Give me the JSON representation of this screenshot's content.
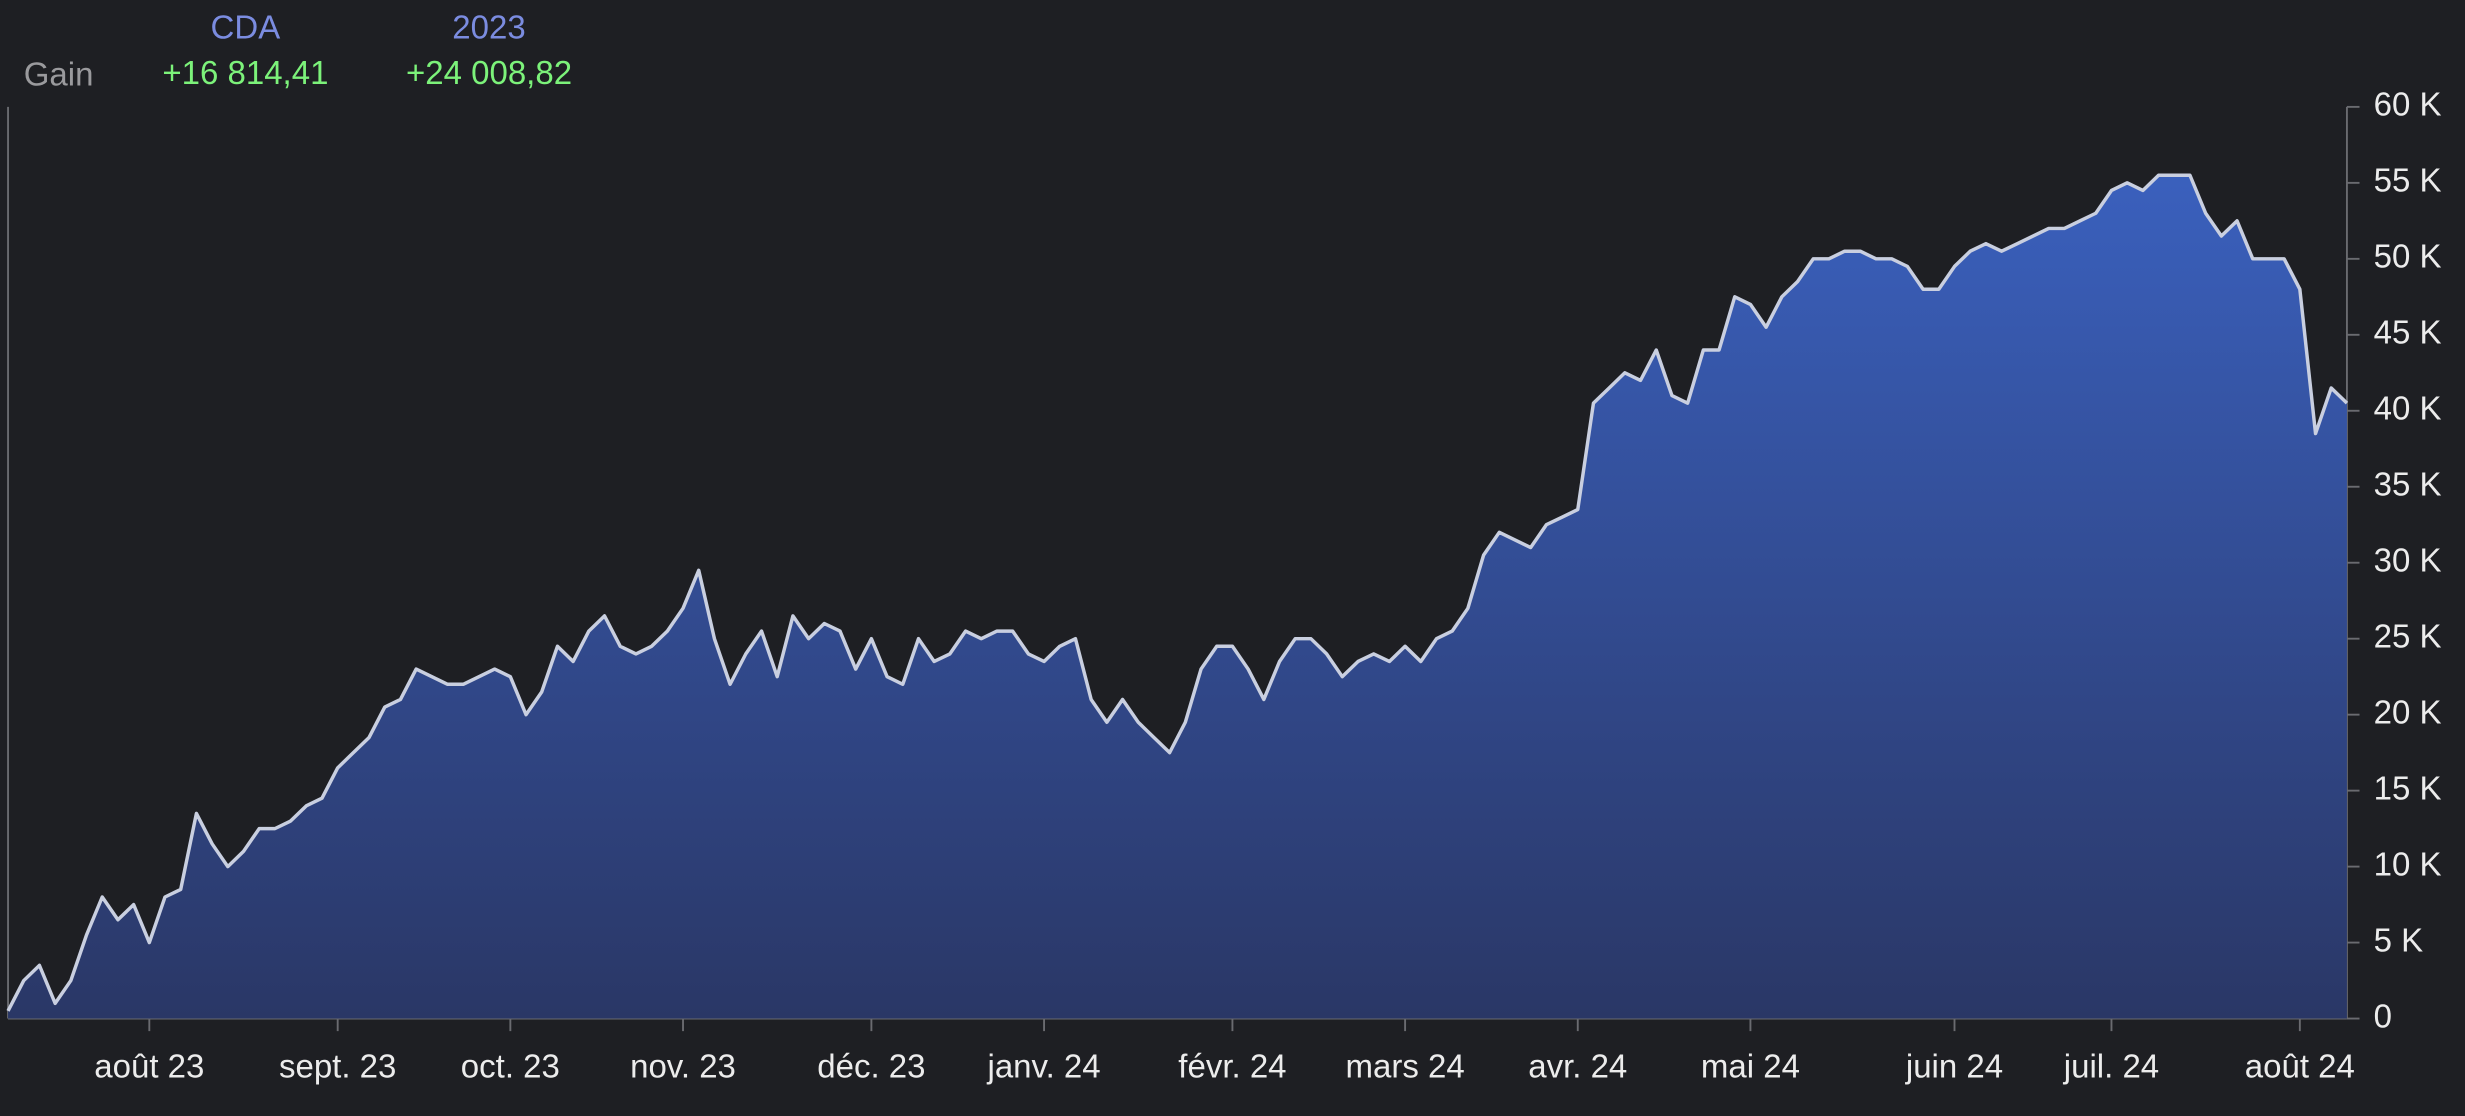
{
  "header": {
    "columns": [
      "CDA",
      "2023"
    ],
    "row_label": "Gain",
    "values": [
      "+16 814,41",
      "+24 008,82"
    ]
  },
  "chart_data": {
    "type": "area",
    "categories": [
      null,
      null,
      null,
      null,
      null,
      null,
      null,
      null,
      null,
      "août 23",
      null,
      null,
      null,
      null,
      null,
      null,
      null,
      null,
      null,
      null,
      null,
      "sept. 23",
      null,
      null,
      null,
      null,
      null,
      null,
      null,
      null,
      null,
      null,
      "oct. 23",
      null,
      null,
      null,
      null,
      null,
      null,
      null,
      null,
      null,
      null,
      "nov. 23",
      null,
      null,
      null,
      null,
      null,
      null,
      null,
      null,
      null,
      null,
      null,
      "déc. 23",
      null,
      null,
      null,
      null,
      null,
      null,
      null,
      null,
      null,
      null,
      "janv. 24",
      null,
      null,
      null,
      null,
      null,
      null,
      null,
      null,
      null,
      null,
      null,
      "févr. 24",
      null,
      null,
      null,
      null,
      null,
      null,
      null,
      null,
      null,
      null,
      "mars 24",
      null,
      null,
      null,
      null,
      null,
      null,
      null,
      null,
      null,
      null,
      "avr. 24",
      null,
      null,
      null,
      null,
      null,
      null,
      null,
      null,
      null,
      null,
      "mai 24",
      null,
      null,
      null,
      null,
      null,
      null,
      null,
      null,
      null,
      null,
      null,
      null,
      "juin 24",
      null,
      null,
      null,
      null,
      null,
      null,
      null,
      null,
      null,
      "juil. 24",
      null,
      null,
      null,
      null,
      null,
      null,
      null,
      null,
      null,
      null,
      null,
      "août 24",
      null,
      null,
      null
    ],
    "values": [
      500,
      2500,
      3500,
      1000,
      2500,
      5500,
      8000,
      6500,
      7500,
      5000,
      8000,
      8500,
      13500,
      11500,
      10000,
      11000,
      12500,
      12500,
      13000,
      14000,
      14500,
      16500,
      17500,
      18500,
      20500,
      21000,
      23000,
      22500,
      22000,
      22000,
      22500,
      23000,
      22500,
      20000,
      21500,
      24500,
      23500,
      25500,
      26500,
      24500,
      24000,
      24500,
      25500,
      27000,
      29500,
      25000,
      22000,
      24000,
      25500,
      22500,
      26500,
      25000,
      26000,
      25500,
      23000,
      25000,
      22500,
      22000,
      25000,
      23500,
      24000,
      25500,
      25000,
      25500,
      25500,
      24000,
      23500,
      24500,
      25000,
      21000,
      19500,
      21000,
      19500,
      18500,
      17500,
      19500,
      23000,
      24500,
      24500,
      23000,
      21000,
      23500,
      25000,
      25000,
      24000,
      22500,
      23500,
      24000,
      23500,
      24500,
      23500,
      25000,
      25500,
      27000,
      30500,
      32000,
      31500,
      31000,
      32500,
      33000,
      33500,
      40500,
      41500,
      42500,
      42000,
      44000,
      41000,
      40500,
      44000,
      44000,
      47500,
      47000,
      45500,
      47500,
      48500,
      50000,
      50000,
      50500,
      50500,
      50000,
      50000,
      49500,
      48000,
      48000,
      49500,
      50500,
      51000,
      50500,
      51000,
      51500,
      52000,
      52000,
      52500,
      53000,
      54500,
      55000,
      54500,
      55500,
      55500,
      55500,
      53000,
      51500,
      52500,
      50000,
      50000,
      50000,
      48000,
      38500,
      41500,
      40500
    ],
    "line_color": "#c9cfe0",
    "fill_top": "#3a60bd",
    "fill_bottom": "#2a3766",
    "ylim": [
      0,
      60000
    ],
    "yticks": [
      {
        "value": 0,
        "label": "0"
      },
      {
        "value": 5000,
        "label": "5 K"
      },
      {
        "value": 10000,
        "label": "10 K"
      },
      {
        "value": 15000,
        "label": "15 K"
      },
      {
        "value": 20000,
        "label": "20 K"
      },
      {
        "value": 25000,
        "label": "25 K"
      },
      {
        "value": 30000,
        "label": "30 K"
      },
      {
        "value": 35000,
        "label": "35 K"
      },
      {
        "value": 40000,
        "label": "40 K"
      },
      {
        "value": 45000,
        "label": "45 K"
      },
      {
        "value": 50000,
        "label": "50 K"
      },
      {
        "value": 55000,
        "label": "55 K"
      },
      {
        "value": 60000,
        "label": "60 K"
      }
    ],
    "y_axis_side": "right"
  }
}
